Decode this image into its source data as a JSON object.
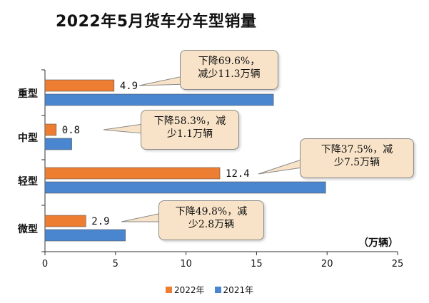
{
  "chart_data": {
    "type": "bar",
    "orientation": "horizontal",
    "title": "2022年5月货车分车型销量",
    "unit_label": "（万辆）",
    "categories": [
      "重型",
      "中型",
      "轻型",
      "微型"
    ],
    "series": [
      {
        "name": "2022年",
        "color": "#ed7d31",
        "values": [
          4.9,
          0.8,
          12.4,
          2.9
        ]
      },
      {
        "name": "2021年",
        "color": "#4a86d0",
        "values": [
          16.2,
          1.9,
          19.9,
          5.7
        ]
      }
    ],
    "data_labels": [
      "4.9",
      "0.8",
      "12.4",
      "2.9"
    ],
    "xlim": [
      0,
      25
    ],
    "x_ticks": [
      "0",
      "5",
      "10",
      "15",
      "20",
      "25"
    ],
    "grid": false,
    "legend_position": "bottom",
    "annotations": [
      [
        "下降69.6%，",
        "减少11.3万辆"
      ],
      [
        "下降58.3%，减",
        "少1.1万辆"
      ],
      [
        "下降37.5%，减",
        "少7.5万辆"
      ],
      [
        "下降49.8%，减",
        "少2.8万辆"
      ]
    ]
  }
}
